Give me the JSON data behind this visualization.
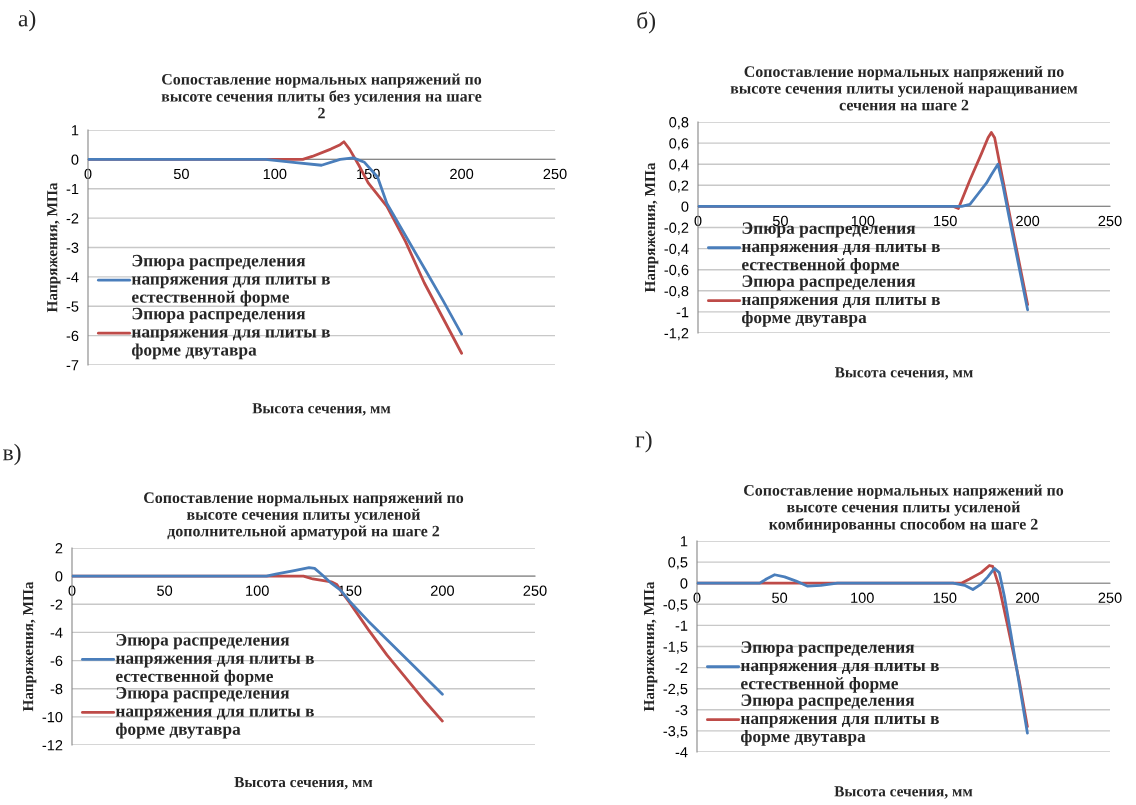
{
  "chart_data": [
    {
      "type": "line",
      "title": "Сопоставление нормальных напряжений по высоте сечения плиты без усиления на шаге 2",
      "xlabel": "Высота сечения, мм",
      "ylabel": "Напряжения, МПа",
      "annotations": [
        "а)"
      ],
      "xlim": [
        0,
        250
      ],
      "xticks": [
        0,
        50,
        100,
        150,
        200,
        250
      ],
      "ylim": [
        -7,
        1
      ],
      "yticks": [
        -7,
        -6,
        -5,
        -4,
        -3,
        -2,
        -1,
        0,
        1
      ],
      "grid": "y",
      "legend": "bottom left",
      "marker": "none",
      "line_style": "solid",
      "series": [
        {
          "name": "Эпюра распределения напряжения для плиты в естественной форме",
          "color": "#4a7ebb",
          "x": [
            0,
            95,
            110,
            125,
            135,
            142,
            148,
            155,
            160,
            170,
            180,
            190,
            200
          ],
          "values": [
            0,
            0,
            -0.1,
            -0.2,
            0.0,
            0.05,
            -0.1,
            -0.6,
            -1.5,
            -2.6,
            -3.7,
            -4.8,
            -5.95
          ]
        },
        {
          "name": "Эпюра распределения напряжения для плиты в форме двутавра",
          "color": "#be4b48",
          "x": [
            0,
            115,
            120,
            130,
            135,
            137,
            140,
            145,
            150,
            160,
            170,
            180,
            190,
            200
          ],
          "values": [
            0,
            0,
            0.1,
            0.35,
            0.5,
            0.6,
            0.35,
            -0.2,
            -0.8,
            -1.6,
            -2.8,
            -4.2,
            -5.4,
            -6.6
          ]
        }
      ]
    },
    {
      "type": "line",
      "title": "Сопоставление нормальных напряжений по высоте сечения плиты усиленой наращиванием сечения на шаге 2",
      "xlabel": "Высота сечения, мм",
      "ylabel": "Напряжения, МПа",
      "annotations": [
        "б)"
      ],
      "xlim": [
        0,
        250
      ],
      "xticks": [
        0,
        50,
        100,
        150,
        200,
        250
      ],
      "ylim": [
        -1.2,
        0.8
      ],
      "yticks": [
        {
          "value": -1.2,
          "label": "-1,2"
        },
        {
          "value": -1,
          "label": "-1"
        },
        {
          "value": -0.8,
          "label": "-0,8"
        },
        {
          "value": -0.6,
          "label": "-0,6"
        },
        {
          "value": -0.4,
          "label": "-0,4"
        },
        {
          "value": -0.2,
          "label": "-0,2"
        },
        {
          "value": 0,
          "label": "0"
        },
        {
          "value": 0.2,
          "label": "0,2"
        },
        {
          "value": 0.4,
          "label": "0,4"
        },
        {
          "value": 0.6,
          "label": "0,6"
        },
        {
          "value": 0.8,
          "label": "0,8"
        }
      ],
      "grid": "y",
      "legend": "bottom left",
      "marker": "none",
      "line_style": "solid",
      "series": [
        {
          "name": "Эпюра распределения напряжения для плиты в естественной форме",
          "color": "#4a7ebb",
          "x": [
            0,
            160,
            165,
            170,
            175,
            178,
            182,
            185,
            190,
            200
          ],
          "values": [
            0,
            0,
            0.02,
            0.12,
            0.22,
            0.3,
            0.4,
            0.2,
            -0.2,
            -0.98
          ]
        },
        {
          "name": "Эпюра распределения напряжения для плиты в форме двутавра",
          "color": "#be4b48",
          "x": [
            0,
            155,
            158,
            165,
            172,
            176,
            178,
            180,
            185,
            190,
            200
          ],
          "values": [
            0,
            0,
            -0.02,
            0.25,
            0.5,
            0.65,
            0.7,
            0.65,
            0.25,
            -0.15,
            -0.93
          ]
        }
      ]
    },
    {
      "type": "line",
      "title": "Сопоставление нормальных напряжений по высоте сечения плиты усиленой дополнительной арматурой на шаге 2",
      "xlabel": "Высота сечения, мм",
      "ylabel": "Напряжения, МПа",
      "annotations": [
        "в)"
      ],
      "xlim": [
        0,
        250
      ],
      "xticks": [
        0,
        50,
        100,
        150,
        200,
        250
      ],
      "ylim": [
        -12,
        2
      ],
      "yticks": [
        -12,
        -10,
        -8,
        -6,
        -4,
        -2,
        0,
        2
      ],
      "grid": "y",
      "legend": "bottom left",
      "marker": "none",
      "line_style": "solid",
      "series": [
        {
          "name": "Эпюра распределения напряжения для плиты в естественной форме",
          "color": "#4a7ebb",
          "x": [
            0,
            105,
            110,
            120,
            128,
            131,
            135,
            140,
            145,
            150,
            160,
            170,
            180,
            190,
            200
          ],
          "values": [
            0,
            0,
            0.15,
            0.4,
            0.6,
            0.55,
            0.1,
            -0.5,
            -1.0,
            -1.8,
            -3.2,
            -4.5,
            -5.8,
            -7.1,
            -8.4
          ]
        },
        {
          "name": "Эпюра распределения напряжения для плиты в форме двутавра",
          "color": "#be4b48",
          "x": [
            0,
            125,
            130,
            140,
            143,
            146,
            150,
            160,
            170,
            180,
            190,
            200
          ],
          "values": [
            0,
            0,
            -0.2,
            -0.4,
            -0.6,
            -1.2,
            -1.9,
            -3.8,
            -5.6,
            -7.2,
            -8.8,
            -10.3
          ]
        }
      ]
    },
    {
      "type": "line",
      "title": "Сопоставление нормальных напряжений по высоте сечения плиты усиленой комбинированны способом на шаге 2",
      "xlabel": "Высота сечения, мм",
      "ylabel": "Напряжения, МПа",
      "annotations": [
        "г)"
      ],
      "xlim": [
        0,
        250
      ],
      "xticks": [
        0,
        50,
        100,
        150,
        200,
        250
      ],
      "ylim": [
        -4,
        1
      ],
      "yticks": [
        {
          "value": -4,
          "label": "-4"
        },
        {
          "value": -3.5,
          "label": "-3,5"
        },
        {
          "value": -3,
          "label": "-3"
        },
        {
          "value": -2.5,
          "label": "-2,5"
        },
        {
          "value": -2,
          "label": "-2"
        },
        {
          "value": -1.5,
          "label": "-1,5"
        },
        {
          "value": -1,
          "label": "-1"
        },
        {
          "value": -0.5,
          "label": "-0,5"
        },
        {
          "value": 0,
          "label": "0"
        },
        {
          "value": 0.5,
          "label": "0,5"
        },
        {
          "value": 1,
          "label": "1"
        }
      ],
      "grid": "y",
      "legend": "bottom left",
      "marker": "none",
      "line_style": "solid",
      "series": [
        {
          "name": "Эпюра распределения напряжения для плиты в естественной форме",
          "color": "#4a7ebb",
          "x": [
            0,
            38,
            42,
            47,
            53,
            60,
            67,
            75,
            85,
            155,
            162,
            167,
            172,
            176,
            180,
            183,
            186,
            190,
            200
          ],
          "values": [
            0,
            0,
            0.1,
            0.2,
            0.15,
            0.05,
            -0.07,
            -0.05,
            0,
            0,
            -0.05,
            -0.15,
            -0.02,
            0.15,
            0.35,
            0.25,
            -0.3,
            -1.2,
            -3.55
          ]
        },
        {
          "name": "Эпюра распределения напряжения для плиты в форме двутавра",
          "color": "#be4b48",
          "x": [
            0,
            160,
            165,
            172,
            177,
            179,
            183,
            188,
            195,
            200
          ],
          "values": [
            0,
            0,
            0.1,
            0.25,
            0.42,
            0.4,
            -0.1,
            -1.0,
            -2.3,
            -3.4
          ]
        }
      ]
    }
  ]
}
